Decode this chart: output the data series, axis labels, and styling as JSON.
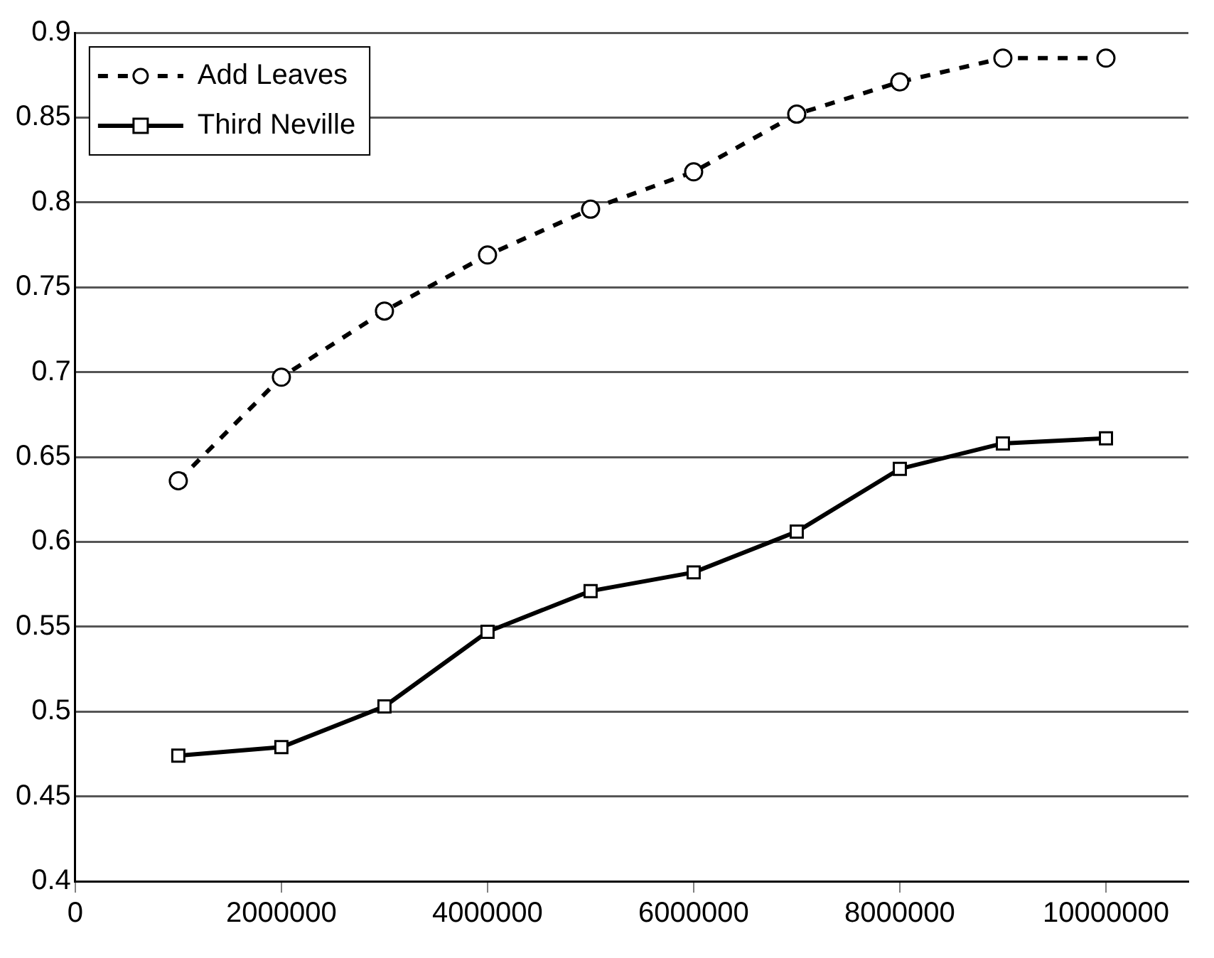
{
  "chart_data": {
    "type": "line",
    "x": [
      1000000,
      2000000,
      3000000,
      4000000,
      5000000,
      6000000,
      7000000,
      8000000,
      9000000,
      10000000
    ],
    "series": [
      {
        "name": "Add Leaves",
        "color": "#000000",
        "marker": "circle",
        "line_style": "dashed",
        "values": [
          0.636,
          0.697,
          0.736,
          0.769,
          0.796,
          0.818,
          0.852,
          0.871,
          0.885,
          0.885
        ]
      },
      {
        "name": "Third Neville",
        "color": "#000000",
        "marker": "square",
        "line_style": "solid",
        "values": [
          0.474,
          0.479,
          0.503,
          0.547,
          0.571,
          0.582,
          0.606,
          0.643,
          0.658,
          0.661
        ]
      }
    ],
    "xlim": [
      0,
      10800000
    ],
    "xticks": [
      0,
      2000000,
      4000000,
      6000000,
      8000000,
      10000000
    ],
    "ylim": [
      0.4,
      0.9
    ],
    "yticks": [
      0.4,
      0.45,
      0.5,
      0.55,
      0.6,
      0.65,
      0.7,
      0.75,
      0.8,
      0.85,
      0.9
    ],
    "grid": "y",
    "legend": "top left"
  }
}
